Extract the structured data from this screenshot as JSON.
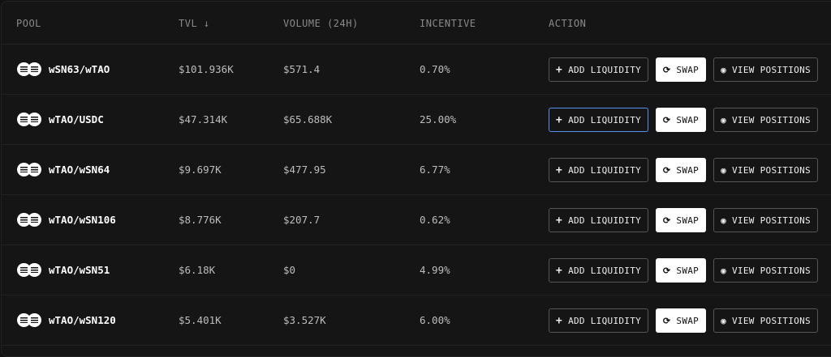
{
  "header": {
    "pool": "POOL",
    "tvl": "TVL ↓",
    "volume": "VOLUME (24H)",
    "incentive": "INCENTIVE",
    "action": "ACTION"
  },
  "actions": {
    "add": "ADD LIQUIDITY",
    "add_icon": "+",
    "swap": "SWAP",
    "swap_icon": "⟳",
    "view": "VIEW POSITIONS",
    "view_icon": "◉"
  },
  "focus_color": "#5b8ff0",
  "rows": [
    {
      "pool": "wSN63/wTAO",
      "tvl": "$101.936K",
      "volume": "$571.4",
      "incentive": "0.70%"
    },
    {
      "pool": "wTAO/USDC",
      "tvl": "$47.314K",
      "volume": "$65.688K",
      "incentive": "25.00%"
    },
    {
      "pool": "wTAO/wSN64",
      "tvl": "$9.697K",
      "volume": "$477.95",
      "incentive": "6.77%"
    },
    {
      "pool": "wTAO/wSN106",
      "tvl": "$8.776K",
      "volume": "$207.7",
      "incentive": "0.62%"
    },
    {
      "pool": "wTAO/wSN51",
      "tvl": "$6.18K",
      "volume": "$0",
      "incentive": "4.99%"
    },
    {
      "pool": "wTAO/wSN120",
      "tvl": "$5.401K",
      "volume": "$3.527K",
      "incentive": "6.00%"
    }
  ]
}
